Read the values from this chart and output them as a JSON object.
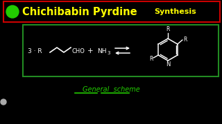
{
  "background_color": "#000000",
  "title_text1": "Chichibabin Pyrdine",
  "title_text2": "Synthesis",
  "title_color": "#FFFF00",
  "title_box_edgecolor": "#CC0000",
  "green_circle_color": "#22CC00",
  "reaction_box_color": "#228B22",
  "white_color": "#FFFFFF",
  "general_scheme_color": "#22CC00",
  "general_scheme_text": "General  scheme",
  "title_fontsize": 10.5,
  "synthesis_fontsize": 8.0,
  "chem_fontsize": 6.5,
  "small_fontsize": 5.0
}
